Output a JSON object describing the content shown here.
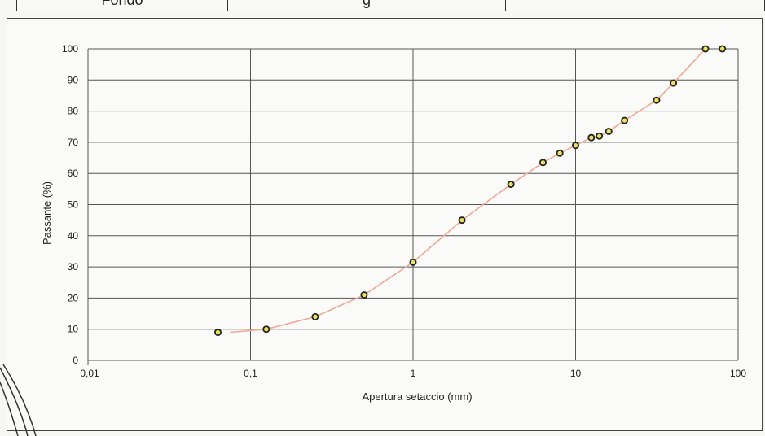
{
  "header": {
    "cells": [
      "Fondo",
      "g",
      ""
    ]
  },
  "chart_data": {
    "type": "scatter",
    "title": "",
    "xlabel": "Apertura setaccio (mm)",
    "ylabel": "Passante (%)",
    "xscale": "log",
    "xlim": [
      0.01,
      100
    ],
    "ylim": [
      0,
      100
    ],
    "x_tick_labels": [
      "0,01",
      "0,1",
      "1",
      "10",
      "100"
    ],
    "x_tick_values": [
      0.01,
      0.1,
      1,
      10,
      100
    ],
    "y_ticks": [
      0,
      10,
      20,
      30,
      40,
      50,
      60,
      70,
      80,
      90,
      100
    ],
    "grid": true,
    "legend": "none",
    "line_color": "#f0a894",
    "marker_color": "#222222",
    "marker_fill": "#e8e060",
    "points": {
      "x": [
        0.063,
        0.125,
        0.25,
        0.5,
        1,
        2,
        4,
        6.3,
        8,
        10,
        12.5,
        14,
        16,
        20,
        31.5,
        40,
        63,
        80
      ],
      "y": [
        9,
        10,
        14,
        21,
        31.5,
        45,
        56.5,
        63.5,
        66.5,
        69,
        71.5,
        72,
        73.5,
        77,
        83.5,
        89,
        100,
        100
      ]
    },
    "curve": {
      "x": [
        0.075,
        0.125,
        0.25,
        0.5,
        1,
        2,
        4,
        6.3,
        8,
        10,
        12.5,
        14,
        16,
        20,
        31.5,
        40,
        63
      ],
      "y": [
        9,
        10,
        14,
        21,
        31.5,
        45,
        56.5,
        63.5,
        66.5,
        69,
        71.5,
        72,
        73.5,
        77,
        83.5,
        89,
        100
      ]
    }
  }
}
